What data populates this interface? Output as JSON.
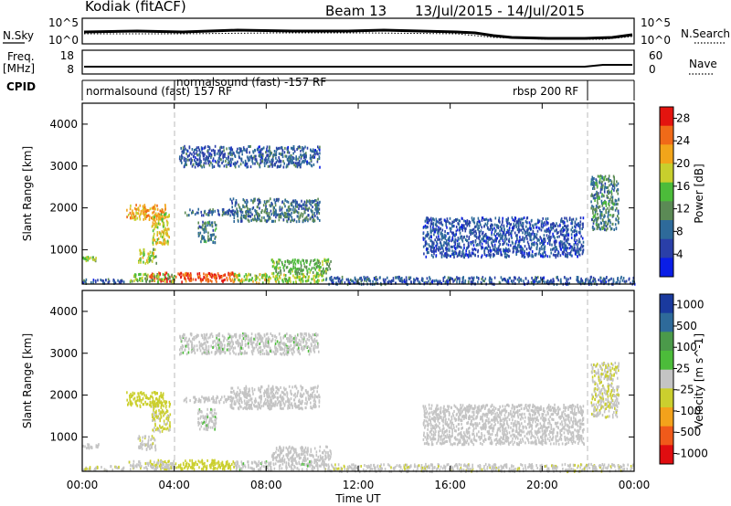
{
  "header": {
    "radar": "Kodiak (fitACF)",
    "beam": "Beam 13",
    "date_range": "13/Jul/2015 - 14/Jul/2015"
  },
  "top_panels": {
    "nsky_label": "N.Sky",
    "nsearch_label": "N.Search",
    "noise_ticks_left": [
      "10^5",
      "10^0"
    ],
    "noise_ticks_right": [
      "10^5",
      "10^0"
    ],
    "freq_label_1": "Freq.",
    "freq_label_2": "[MHz]",
    "freq_ticks": [
      "18",
      "8"
    ],
    "nave_label": "Nave",
    "nave_ticks": [
      "60",
      "0"
    ],
    "cpid_label": "CPID",
    "cpid_segments": [
      "normalsound (fast) 157 RF",
      "normalsound (fast) -157 RF",
      "rbsp 200 RF"
    ]
  },
  "colors": {
    "power": [
      "#0a1ee6",
      "#2a3fa8",
      "#2e6a9a",
      "#5b8a55",
      "#4cbc3a",
      "#c8cf2d",
      "#f2a51a",
      "#f06a18",
      "#e3140f"
    ],
    "velocity": [
      "#e00d10",
      "#f05a1a",
      "#f3a21b",
      "#cbcf2e",
      "#c4c4c4",
      "#4cbc3a",
      "#4b9a4a",
      "#2e6a9a",
      "#1a3a9e"
    ]
  },
  "chart_data": [
    {
      "type": "heatmap",
      "name": "power",
      "ylabel": "Slant Range [km]",
      "yticks": [
        "1000",
        "2000",
        "3000",
        "4000"
      ],
      "ylim": [
        180,
        4500
      ],
      "colorbar_label": "Power [dB]",
      "colorbar_ticks": [
        "4",
        "8",
        "12",
        "16",
        "20",
        "24",
        "28"
      ],
      "colorbar_range": [
        0,
        30
      ],
      "blobs": [
        {
          "t0": 2.9,
          "t1": 6.6,
          "r0": 260,
          "r1": 480,
          "v": 27
        },
        {
          "t0": 2.0,
          "t1": 4.0,
          "r0": 260,
          "r1": 450,
          "v": 16
        },
        {
          "t0": 6.6,
          "t1": 10.5,
          "r0": 230,
          "r1": 450,
          "v": 17
        },
        {
          "t0": 10.5,
          "t1": 24.0,
          "r0": 200,
          "r1": 380,
          "v": 7
        },
        {
          "t0": 0.0,
          "t1": 1.8,
          "r0": 220,
          "r1": 330,
          "v": 7
        },
        {
          "t0": 0.0,
          "t1": 0.7,
          "r0": 760,
          "r1": 860,
          "v": 15
        },
        {
          "t0": 1.9,
          "t1": 3.6,
          "r0": 1750,
          "r1": 2100,
          "v": 22
        },
        {
          "t0": 3.0,
          "t1": 3.8,
          "r0": 1150,
          "r1": 1900,
          "v": 19
        },
        {
          "t0": 2.4,
          "t1": 3.2,
          "r0": 700,
          "r1": 1050,
          "v": 17
        },
        {
          "t0": 4.4,
          "t1": 6.6,
          "r0": 1850,
          "r1": 2000,
          "v": 8
        },
        {
          "t0": 5.0,
          "t1": 5.8,
          "r0": 1200,
          "r1": 1700,
          "v": 10
        },
        {
          "t0": 6.4,
          "t1": 10.3,
          "r0": 1700,
          "r1": 2250,
          "v": 9
        },
        {
          "t0": 4.2,
          "t1": 10.3,
          "r0": 3000,
          "r1": 3500,
          "v": 7
        },
        {
          "t0": 8.2,
          "t1": 10.8,
          "r0": 450,
          "r1": 800,
          "v": 14
        },
        {
          "t0": 14.8,
          "t1": 21.8,
          "r0": 850,
          "r1": 1800,
          "v": 6
        },
        {
          "t0": 22.1,
          "t1": 23.3,
          "r0": 1500,
          "r1": 2800,
          "v": 10
        }
      ]
    },
    {
      "type": "heatmap",
      "name": "velocity",
      "ylabel": "Slant Range [km]",
      "yticks": [
        "1000",
        "2000",
        "3000",
        "4000"
      ],
      "ylim": [
        180,
        4500
      ],
      "colorbar_label": "Velocity [m s^-1]",
      "colorbar_ticks": [
        "1000",
        "500",
        "100",
        "25",
        "-25",
        "-100",
        "-500",
        "-1000"
      ],
      "colorbar_range": [
        -1250,
        1250
      ],
      "blobs": [
        {
          "t0": 2.9,
          "t1": 6.6,
          "r0": 260,
          "r1": 480,
          "v": 250
        },
        {
          "t0": 2.0,
          "t1": 4.0,
          "r0": 260,
          "r1": 450,
          "v": 60
        },
        {
          "t0": 6.6,
          "t1": 10.5,
          "r0": 230,
          "r1": 450,
          "v": -60
        },
        {
          "t0": 10.5,
          "t1": 24.0,
          "r0": 200,
          "r1": 380,
          "v": 70
        },
        {
          "t0": 0.0,
          "t1": 1.8,
          "r0": 220,
          "r1": 330,
          "v": 90
        },
        {
          "t0": 0.0,
          "t1": 0.7,
          "r0": 760,
          "r1": 860,
          "v": 0
        },
        {
          "t0": 1.9,
          "t1": 3.6,
          "r0": 1750,
          "r1": 2100,
          "v": 300
        },
        {
          "t0": 3.0,
          "t1": 3.8,
          "r0": 1150,
          "r1": 1900,
          "v": 200
        },
        {
          "t0": 2.4,
          "t1": 3.2,
          "r0": 700,
          "r1": 1050,
          "v": 80
        },
        {
          "t0": 4.4,
          "t1": 6.6,
          "r0": 1850,
          "r1": 2000,
          "v": 0
        },
        {
          "t0": 5.0,
          "t1": 5.8,
          "r0": 1200,
          "r1": 1700,
          "v": -70
        },
        {
          "t0": 6.4,
          "t1": 10.3,
          "r0": 1700,
          "r1": 2250,
          "v": -40
        },
        {
          "t0": 4.2,
          "t1": 10.3,
          "r0": 3000,
          "r1": 3500,
          "v": -60
        },
        {
          "t0": 8.2,
          "t1": 10.8,
          "r0": 450,
          "r1": 800,
          "v": 0
        },
        {
          "t0": 14.8,
          "t1": 21.8,
          "r0": 850,
          "r1": 1800,
          "v": 0
        },
        {
          "t0": 22.1,
          "t1": 23.3,
          "r0": 1500,
          "r1": 2800,
          "v": 120
        }
      ]
    }
  ],
  "time_axis": {
    "label": "Time UT",
    "ticks": [
      "00:00",
      "04:00",
      "08:00",
      "12:00",
      "16:00",
      "20:00",
      "00:00"
    ],
    "cpid_change_hours": [
      4.0,
      22.0
    ]
  }
}
